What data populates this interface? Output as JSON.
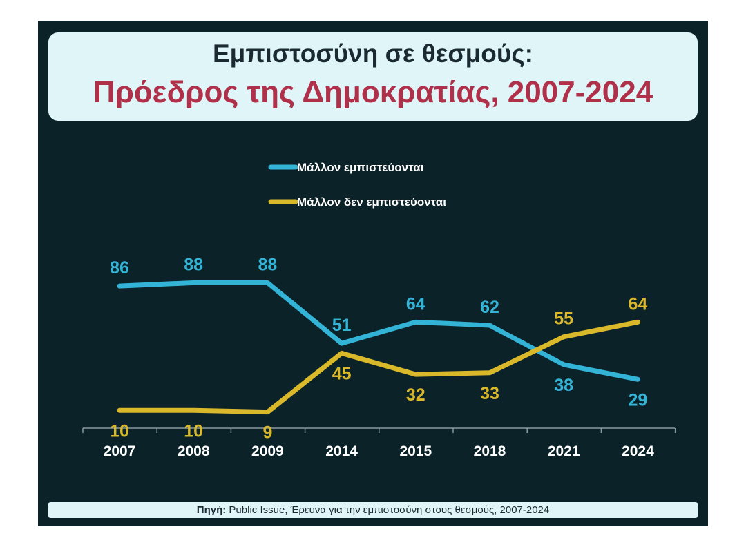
{
  "title": "Εμπιστοσύνη σε θεσμούς:",
  "subtitle": "Πρόεδρος της Δημοκρατίας, 2007-2024",
  "source": {
    "label": "Πηγή:",
    "text": " Public Issue, Έρευνα για  την εμπιστοσύνη στους θεσμούς, 2007-2024"
  },
  "chart_data": {
    "type": "line",
    "categories": [
      "2007",
      "2008",
      "2009",
      "2014",
      "2015",
      "2018",
      "2021",
      "2024"
    ],
    "series": [
      {
        "name": "Μάλλον εμπιστεύονται",
        "color": "#33b3d6",
        "values": [
          86,
          88,
          88,
          51,
          64,
          62,
          38,
          29
        ]
      },
      {
        "name": "Μάλλον δεν εμπιστεύονται",
        "color": "#d9b82a",
        "values": [
          10,
          10,
          9,
          45,
          32,
          33,
          55,
          64
        ]
      }
    ],
    "legend": "top-center",
    "grid": false,
    "ylim": [
      0,
      100
    ]
  }
}
